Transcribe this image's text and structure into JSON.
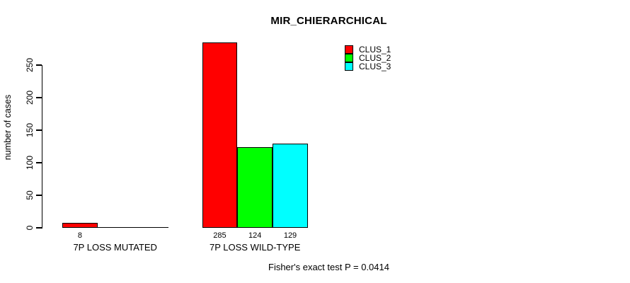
{
  "figure": {
    "background": "#ffffff",
    "text_color": "#000000"
  },
  "chart_data": {
    "type": "bar",
    "title": "MIR_CHIERARCHICAL",
    "ylabel": "number of cases",
    "xlabel": "",
    "categories": [
      "7P LOSS MUTATED",
      "7P LOSS WILD-TYPE"
    ],
    "series": [
      {
        "name": "CLUS_1",
        "color": "#ff0000",
        "values": [
          8,
          285
        ]
      },
      {
        "name": "CLUS_2",
        "color": "#00ff00",
        "values": [
          0,
          124
        ]
      },
      {
        "name": "CLUS_3",
        "color": "#00ffff",
        "values": [
          0,
          129
        ]
      }
    ],
    "bar_value_labels": [
      [
        "8",
        "",
        ""
      ],
      [
        "285",
        "124",
        "129"
      ]
    ],
    "yticks": [
      0,
      50,
      100,
      150,
      200,
      250
    ],
    "ylim": [
      0,
      285
    ],
    "grid": false,
    "legend": {
      "position": "top-right",
      "entries": [
        "CLUS_1",
        "CLUS_2",
        "CLUS_3"
      ]
    },
    "annotation": "Fisher's exact test P = 0.0414"
  }
}
